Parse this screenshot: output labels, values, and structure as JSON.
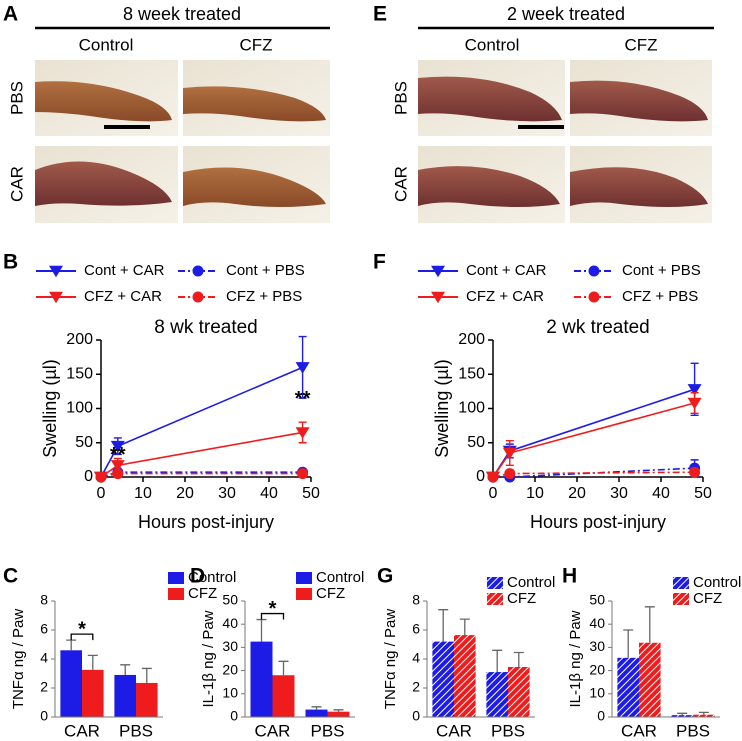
{
  "figure": {
    "panel_labels": [
      "A",
      "B",
      "C",
      "D",
      "E",
      "F",
      "G",
      "H"
    ],
    "photo_panels": [
      {
        "title": "8 week treated",
        "columns": [
          "Control",
          "CFZ"
        ],
        "rows": [
          "PBS",
          "CAR"
        ]
      },
      {
        "title": "2 week treated",
        "columns": [
          "Control",
          "CFZ"
        ],
        "rows": [
          "PBS",
          "CAR"
        ]
      }
    ]
  },
  "chart_data": [
    {
      "type": "line",
      "title": "8 wk treated",
      "xlabel": "Hours post-injury",
      "ylabel": "Swelling (µl)",
      "x": [
        0,
        4,
        48
      ],
      "xlim": [
        0,
        50
      ],
      "xticks": [
        0,
        10,
        20,
        30,
        40,
        50
      ],
      "ylim": [
        0,
        200
      ],
      "yticks": [
        0,
        50,
        100,
        150,
        200
      ],
      "legend": "top",
      "series": [
        {
          "name": "Cont + CAR",
          "color": "#1c1ce6",
          "marker": "triangle-down",
          "linestyle": "solid",
          "values": [
            0,
            45,
            160
          ],
          "errors": [
            0,
            12,
            45
          ]
        },
        {
          "name": "Cont + PBS",
          "color": "#1c1ce6",
          "marker": "circle",
          "linestyle": "dashdot",
          "values": [
            0,
            7,
            7
          ],
          "errors": [
            0,
            3,
            3
          ]
        },
        {
          "name": "CFZ + CAR",
          "color": "#ee1c1c",
          "marker": "triangle-down",
          "linestyle": "solid",
          "values": [
            0,
            17,
            65
          ],
          "errors": [
            0,
            10,
            15
          ]
        },
        {
          "name": "CFZ + PBS",
          "color": "#ee1c1c",
          "marker": "circle",
          "linestyle": "dashdot",
          "values": [
            0,
            5,
            5
          ],
          "errors": [
            0,
            5,
            5
          ]
        }
      ],
      "annotations": [
        {
          "text": "**",
          "x": 4
        },
        {
          "text": "**",
          "x": 48
        }
      ]
    },
    {
      "type": "line",
      "title": "2 wk treated",
      "xlabel": "Hours post-injury",
      "ylabel": "Swelling (µl)",
      "x": [
        0,
        4,
        48
      ],
      "xlim": [
        0,
        50
      ],
      "xticks": [
        0,
        10,
        20,
        30,
        40,
        50
      ],
      "ylim": [
        0,
        200
      ],
      "yticks": [
        0,
        50,
        100,
        150,
        200
      ],
      "legend": "top",
      "series": [
        {
          "name": "Cont + CAR",
          "color": "#1c1ce6",
          "marker": "triangle-down",
          "linestyle": "solid",
          "values": [
            0,
            38,
            128
          ],
          "errors": [
            0,
            10,
            38
          ]
        },
        {
          "name": "Cont + PBS",
          "color": "#1c1ce6",
          "marker": "circle",
          "linestyle": "dashdot",
          "values": [
            0,
            0,
            13
          ],
          "errors": [
            0,
            3,
            12
          ]
        },
        {
          "name": "CFZ + CAR",
          "color": "#ee1c1c",
          "marker": "triangle-down",
          "linestyle": "solid",
          "values": [
            0,
            35,
            108
          ],
          "errors": [
            0,
            18,
            15
          ]
        },
        {
          "name": "CFZ + PBS",
          "color": "#ee1c1c",
          "marker": "circle",
          "linestyle": "dashdot",
          "values": [
            0,
            5,
            7
          ],
          "errors": [
            0,
            3,
            5
          ]
        }
      ]
    },
    {
      "type": "bar",
      "ylabel": "TNFα ng / Paw",
      "categories": [
        "CAR",
        "PBS"
      ],
      "ylim": [
        0,
        8
      ],
      "yticks": [
        0,
        2,
        4,
        6,
        8
      ],
      "legend": "top-right",
      "hatch": false,
      "series": [
        {
          "name": "Control",
          "color": "#1c1ce6",
          "values": [
            4.6,
            2.9
          ],
          "errors": [
            0.7,
            0.7
          ]
        },
        {
          "name": "CFZ",
          "color": "#ee1c1c",
          "values": [
            3.25,
            2.35
          ],
          "errors": [
            1.0,
            1.0
          ]
        }
      ],
      "annotations": [
        {
          "text": "*",
          "category": 0
        }
      ]
    },
    {
      "type": "bar",
      "ylabel": "IL-1β ng / Paw",
      "categories": [
        "CAR",
        "PBS"
      ],
      "ylim": [
        0,
        50
      ],
      "yticks": [
        0,
        10,
        20,
        30,
        40,
        50
      ],
      "legend": "top-right",
      "hatch": false,
      "series": [
        {
          "name": "Control",
          "color": "#1c1ce6",
          "values": [
            32.5,
            3.2
          ],
          "errors": [
            9.5,
            1.2
          ]
        },
        {
          "name": "CFZ",
          "color": "#ee1c1c",
          "values": [
            18,
            2.3
          ],
          "errors": [
            6,
            0.8
          ]
        }
      ],
      "annotations": [
        {
          "text": "*",
          "category": 0
        }
      ]
    },
    {
      "type": "bar",
      "ylabel": "TNFα ng / Paw",
      "categories": [
        "CAR",
        "PBS"
      ],
      "ylim": [
        0,
        8
      ],
      "yticks": [
        0,
        2,
        4,
        6,
        8
      ],
      "legend": "top-right",
      "hatch": true,
      "series": [
        {
          "name": "Control",
          "color": "#1c1ce6",
          "values": [
            5.2,
            3.1
          ],
          "errors": [
            2.2,
            1.5
          ]
        },
        {
          "name": "CFZ",
          "color": "#ee1c1c",
          "values": [
            5.65,
            3.45
          ],
          "errors": [
            1.1,
            1.0
          ]
        }
      ]
    },
    {
      "type": "bar",
      "ylabel": "IL-1β ng / Paw",
      "categories": [
        "CAR",
        "PBS"
      ],
      "ylim": [
        0,
        50
      ],
      "yticks": [
        0,
        10,
        20,
        30,
        40,
        50
      ],
      "legend": "top-right",
      "hatch": true,
      "series": [
        {
          "name": "Control",
          "color": "#1c1ce6",
          "values": [
            25.5,
            0.8
          ],
          "errors": [
            12,
            0.8
          ]
        },
        {
          "name": "CFZ",
          "color": "#ee1c1c",
          "values": [
            32,
            1.0
          ],
          "errors": [
            15.5,
            1.0
          ]
        }
      ]
    }
  ]
}
